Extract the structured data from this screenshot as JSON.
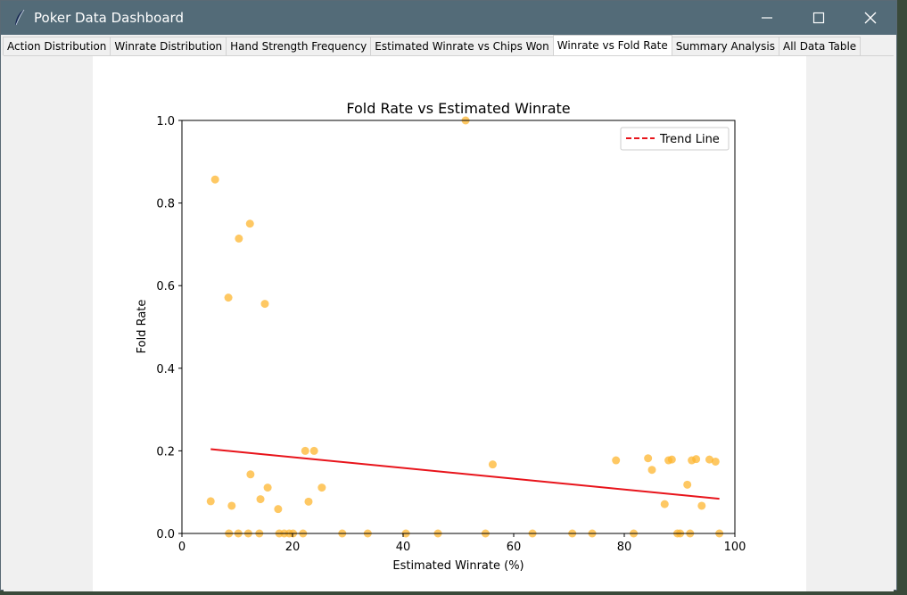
{
  "window": {
    "title": "Poker Data Dashboard",
    "icon": "feather-icon"
  },
  "tabs": [
    {
      "label": "Action Distribution"
    },
    {
      "label": "Winrate Distribution"
    },
    {
      "label": "Hand Strength Frequency"
    },
    {
      "label": "Estimated Winrate vs Chips Won"
    },
    {
      "label": "Winrate vs Fold Rate",
      "active": true
    },
    {
      "label": "Summary Analysis"
    },
    {
      "label": "All Data Table"
    }
  ],
  "chart_data": {
    "type": "scatter",
    "title": "Fold Rate vs Estimated Winrate",
    "xlabel": "Estimated Winrate (%)",
    "ylabel": "Fold Rate",
    "xlim": [
      0,
      100
    ],
    "ylim": [
      0,
      1.0
    ],
    "xticks": [
      "0",
      "20",
      "40",
      "60",
      "80",
      "100"
    ],
    "yticks": [
      "0.0",
      "0.2",
      "0.4",
      "0.6",
      "0.8",
      "1.0"
    ],
    "grid": false,
    "legend": {
      "placement": "top-right",
      "entries": [
        "Trend Line"
      ]
    },
    "point_color": "#fdb62f",
    "trend_color": "#e8141b",
    "points": [
      [
        5.2,
        0.078
      ],
      [
        6.0,
        0.857
      ],
      [
        8.4,
        0.571
      ],
      [
        9.0,
        0.067
      ],
      [
        10.3,
        0.714
      ],
      [
        12.3,
        0.75
      ],
      [
        12.4,
        0.143
      ],
      [
        14.2,
        0.083
      ],
      [
        15.0,
        0.556
      ],
      [
        15.5,
        0.111
      ],
      [
        17.4,
        0.059
      ],
      [
        22.3,
        0.2
      ],
      [
        22.9,
        0.077
      ],
      [
        23.9,
        0.2
      ],
      [
        25.3,
        0.111
      ],
      [
        56.2,
        0.167
      ],
      [
        51.3,
        1.0
      ],
      [
        78.5,
        0.177
      ],
      [
        84.3,
        0.182
      ],
      [
        85.0,
        0.154
      ],
      [
        87.3,
        0.071
      ],
      [
        88.0,
        0.177
      ],
      [
        88.6,
        0.179
      ],
      [
        91.4,
        0.118
      ],
      [
        92.2,
        0.177
      ],
      [
        93.0,
        0.18
      ],
      [
        94.0,
        0.067
      ],
      [
        95.4,
        0.179
      ],
      [
        96.5,
        0.174
      ],
      [
        8.5,
        0.0
      ],
      [
        10.2,
        0.0
      ],
      [
        12.0,
        0.0
      ],
      [
        14.0,
        0.0
      ],
      [
        17.6,
        0.0
      ],
      [
        18.5,
        0.0
      ],
      [
        19.4,
        0.0
      ],
      [
        20.1,
        0.0
      ],
      [
        21.9,
        0.0
      ],
      [
        29.0,
        0.0
      ],
      [
        33.6,
        0.0
      ],
      [
        40.5,
        0.0
      ],
      [
        46.3,
        0.0
      ],
      [
        54.9,
        0.0
      ],
      [
        63.4,
        0.0
      ],
      [
        70.6,
        0.0
      ],
      [
        74.2,
        0.0
      ],
      [
        81.7,
        0.0
      ],
      [
        89.6,
        0.0
      ],
      [
        90.1,
        0.0
      ],
      [
        91.9,
        0.0
      ],
      [
        97.2,
        0.0
      ]
    ],
    "trend_line": {
      "x": [
        5.2,
        97.2
      ],
      "y": [
        0.204,
        0.084
      ]
    }
  }
}
